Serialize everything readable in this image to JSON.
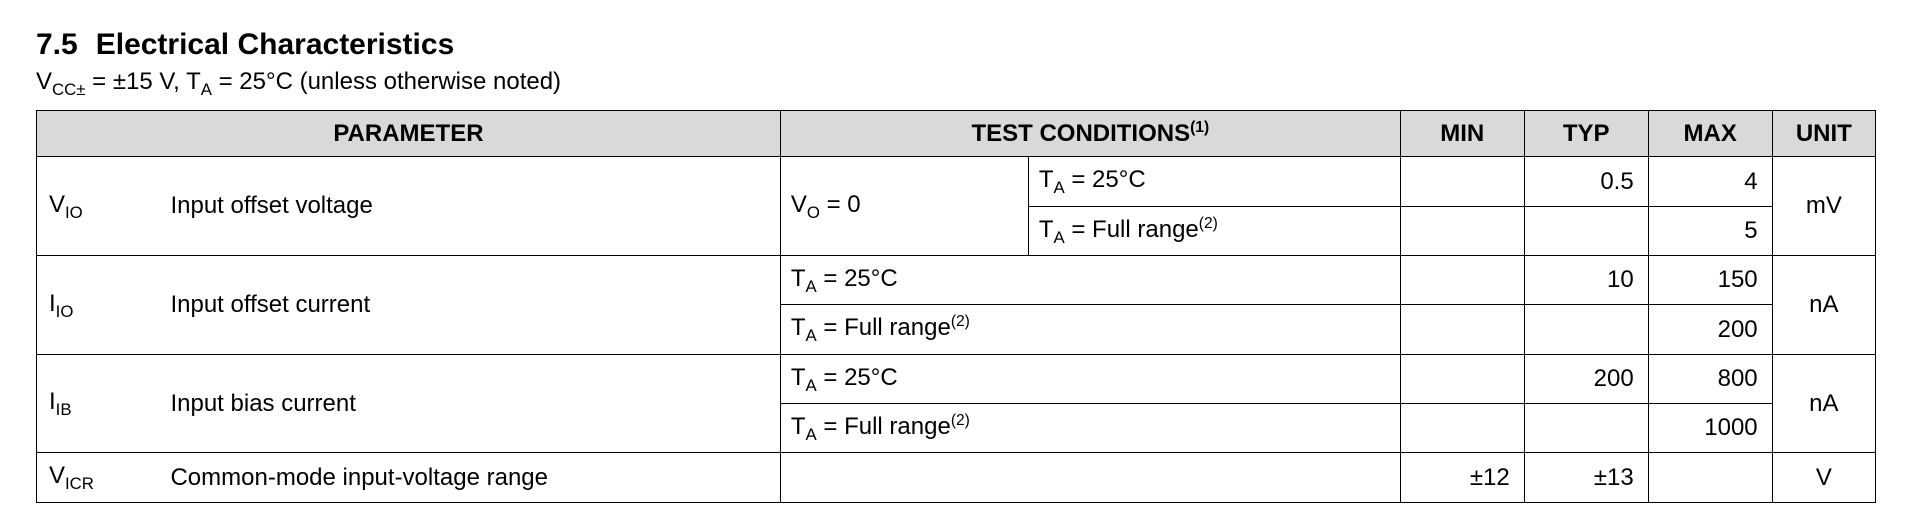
{
  "heading": {
    "number": "7.5",
    "title": "Electrical Characteristics"
  },
  "cond_prefix_sub": "CC±",
  "cond_mid": " = ±15 V, T",
  "cond_ta_sub": "A",
  "cond_tail": " = 25°C (unless otherwise noted)",
  "headers": {
    "parameter": "PARAMETER",
    "test_conditions": "TEST CONDITIONS",
    "tc_note": "(1)",
    "min": "MIN",
    "typ": "TYP",
    "max": "MAX",
    "unit": "UNIT"
  },
  "rows": {
    "vio": {
      "sym_pre": "V",
      "sym_sub": "IO",
      "param": "Input offset voltage",
      "cond_a_pre": "V",
      "cond_a_sub": "O",
      "cond_a_tail": " = 0",
      "r1_cond_pre": "T",
      "r1_cond_sub": "A",
      "r1_cond_tail": " = 25°C",
      "r1_typ": "0.5",
      "r1_max": "4",
      "r2_cond_pre": "T",
      "r2_cond_sub": "A",
      "r2_cond_tail": " = Full range",
      "r2_cond_sup": "(2)",
      "r2_max": "5",
      "unit": "mV"
    },
    "iio": {
      "sym_pre": "I",
      "sym_sub": "IO",
      "param": "Input offset current",
      "r1_cond_pre": "T",
      "r1_cond_sub": "A",
      "r1_cond_tail": " = 25°C",
      "r1_typ": "10",
      "r1_max": "150",
      "r2_cond_pre": "T",
      "r2_cond_sub": "A",
      "r2_cond_tail": " = Full range",
      "r2_cond_sup": "(2)",
      "r2_max": "200",
      "unit": "nA"
    },
    "iib": {
      "sym_pre": "I",
      "sym_sub": "IB",
      "param": "Input bias current",
      "r1_cond_pre": "T",
      "r1_cond_sub": "A",
      "r1_cond_tail": " = 25°C",
      "r1_typ": "200",
      "r1_max": "800",
      "r2_cond_pre": "T",
      "r2_cond_sub": "A",
      "r2_cond_tail": " = Full range",
      "r2_cond_sup": "(2)",
      "r2_max": "1000",
      "unit": "nA"
    },
    "vicr": {
      "sym_pre": "V",
      "sym_sub": "ICR",
      "param": "Common-mode input-voltage range",
      "min": "±12",
      "typ": "±13",
      "unit": "V"
    }
  }
}
